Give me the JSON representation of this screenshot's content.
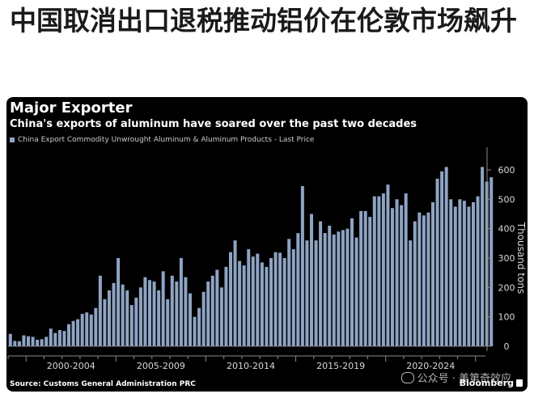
{
  "headline": "中国取消出口退税推动铝价在伦敦市场飙升",
  "chart_data": {
    "type": "bar",
    "title": "Major Exporter",
    "subtitle": "China's exports of aluminum have soared over the past two decades",
    "legend": [
      "China Export Commodity Unwrought Aluminum & Aluminum Products - Last Price"
    ],
    "ylabel": "Thousand tons",
    "ylim": [
      0,
      650
    ],
    "yticks": [
      0,
      100,
      200,
      300,
      400,
      500,
      600
    ],
    "xlim": [
      1999.0,
      2025.55
    ],
    "xtick_labels": [
      "2000-2004",
      "2005-2009",
      "2010-2014",
      "2015-2019",
      "2020-2024"
    ],
    "grid": false,
    "x_start": "1999-Q1",
    "x_step": "quarter",
    "values": [
      42,
      18,
      17,
      37,
      34,
      32,
      22,
      24,
      32,
      60,
      45,
      55,
      52,
      75,
      86,
      92,
      110,
      115,
      108,
      130,
      240,
      160,
      190,
      215,
      300,
      210,
      190,
      140,
      165,
      200,
      235,
      225,
      220,
      190,
      255,
      160,
      240,
      220,
      300,
      235,
      180,
      100,
      130,
      185,
      220,
      240,
      260,
      200,
      270,
      320,
      360,
      290,
      275,
      330,
      305,
      315,
      285,
      270,
      300,
      320,
      318,
      300,
      365,
      330,
      385,
      545,
      360,
      450,
      360,
      425,
      385,
      410,
      380,
      390,
      395,
      400,
      435,
      370,
      460,
      460,
      440,
      510,
      510,
      520,
      550,
      470,
      500,
      480,
      520,
      360,
      425,
      455,
      445,
      455,
      490,
      570,
      595,
      610,
      500,
      475,
      500,
      495,
      475,
      490,
      510,
      610,
      560,
      575
    ]
  },
  "source": "Source: Customs General Administration PRC",
  "brand": "Bloomberg",
  "watermark": "公众号 · 美第奇效应",
  "colors": {
    "bar": "#8ea4c4",
    "panel": "#000000",
    "axis": "#8a8a8a"
  }
}
